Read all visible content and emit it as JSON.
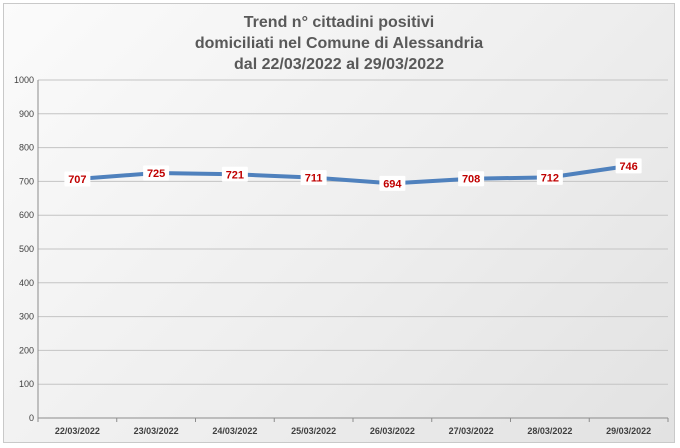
{
  "chart_data": {
    "type": "line",
    "title_lines": [
      "Trend n° cittadini positivi",
      "domiciliati nel Comune di Alessandria",
      "dal 22/03/2022 al 29/03/2022"
    ],
    "categories": [
      "22/03/2022",
      "23/03/2022",
      "24/03/2022",
      "25/03/2022",
      "26/03/2022",
      "27/03/2022",
      "28/03/2022",
      "29/03/2022"
    ],
    "series": [
      {
        "values": [
          707,
          725,
          721,
          711,
          694,
          708,
          712,
          746
        ]
      }
    ],
    "ylim": [
      0,
      1000
    ],
    "yticks": [
      0,
      100,
      200,
      300,
      400,
      500,
      600,
      700,
      800,
      900,
      1000
    ],
    "grid": true,
    "legend": "none",
    "line_color": "#4f81bd",
    "label_color": "#c00000"
  }
}
